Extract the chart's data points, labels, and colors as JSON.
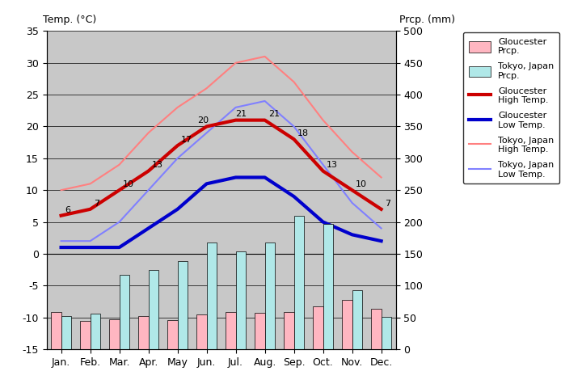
{
  "months": [
    "Jan.",
    "Feb.",
    "Mar.",
    "Apr.",
    "May",
    "Jun.",
    "Jul.",
    "Aug.",
    "Sep.",
    "Oct.",
    "Nov.",
    "Dec."
  ],
  "gloucester_high": [
    6,
    7,
    10,
    13,
    17,
    20,
    21,
    21,
    18,
    13,
    10,
    7
  ],
  "gloucester_low": [
    1,
    1,
    1,
    4,
    7,
    11,
    12,
    12,
    9,
    5,
    3,
    2
  ],
  "tokyo_high": [
    10,
    11,
    14,
    19,
    23,
    26,
    30,
    31,
    27,
    21,
    16,
    12
  ],
  "tokyo_low": [
    2,
    2,
    5,
    10,
    15,
    19,
    23,
    24,
    20,
    14,
    8,
    4
  ],
  "gloucester_prcp_mm": [
    58,
    44,
    47,
    52,
    46,
    54,
    58,
    57,
    58,
    67,
    78,
    63
  ],
  "tokyo_prcp_mm": [
    52,
    56,
    117,
    125,
    138,
    168,
    154,
    168,
    210,
    197,
    93,
    51
  ],
  "temp_ylim": [
    -15,
    35
  ],
  "prcp_ylim": [
    0,
    500
  ],
  "background_color": "#c8c8c8",
  "gloucester_high_color": "#cc0000",
  "gloucester_low_color": "#0000cc",
  "tokyo_high_color": "#ff8080",
  "tokyo_low_color": "#8080ff",
  "gloucester_prcp_color": "#ffb6c1",
  "tokyo_prcp_color": "#b0e8e8",
  "title_left": "Temp. (°C)",
  "title_right": "Prcp. (mm)"
}
